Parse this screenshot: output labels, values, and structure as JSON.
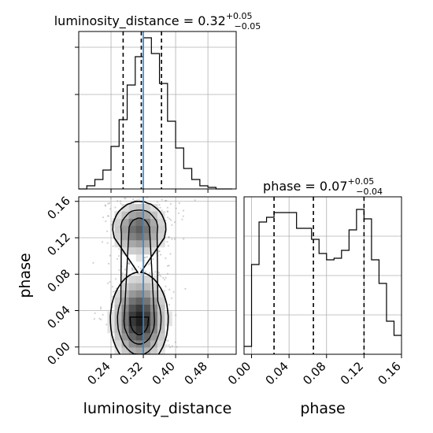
{
  "chart_data": [
    {
      "type": "histogram",
      "panel": "top-left",
      "parameter": "luminosity_distance",
      "title": {
        "prefix": "luminosity_distance = ",
        "value": "0.32",
        "plus": "+0.05",
        "minus": "−0.05"
      },
      "bin_edges": [
        0.16,
        0.18,
        0.2,
        0.22,
        0.24,
        0.26,
        0.28,
        0.3,
        0.32,
        0.34,
        0.36,
        0.38,
        0.4,
        0.42,
        0.44,
        0.46,
        0.48,
        0.5,
        0.52,
        0.54
      ],
      "counts": [
        0,
        0.02,
        0.06,
        0.12,
        0.27,
        0.44,
        0.66,
        0.84,
        0.96,
        0.86,
        0.67,
        0.43,
        0.26,
        0.13,
        0.06,
        0.02,
        0.01,
        0,
        0
      ],
      "quantiles": [
        0.27,
        0.315,
        0.365
      ],
      "truth": 0.32,
      "xlim": [
        0.16,
        0.55
      ],
      "ylim": [
        0,
        1.0
      ],
      "ytick_marks": [
        0.3,
        0.6,
        0.9
      ],
      "grid": true
    },
    {
      "type": "histogram2d_contour",
      "panel": "bottom-left",
      "x_parameter": "luminosity_distance",
      "y_parameter": "phase",
      "xlabel": "luminosity_distance",
      "ylabel": "phase",
      "xlim": [
        0.16,
        0.55
      ],
      "ylim": [
        -0.008,
        0.165
      ],
      "xticks": [
        "0.24",
        "0.32",
        "0.40",
        "0.48"
      ],
      "yticks": [
        "0.00",
        "0.04",
        "0.08",
        "0.12",
        "0.16"
      ],
      "truth_x": 0.32,
      "density_modes": [
        {
          "x": 0.31,
          "y": 0.03,
          "sx": 0.035,
          "sy": 0.025,
          "weight": 1.0
        },
        {
          "x": 0.31,
          "y": 0.13,
          "sx": 0.035,
          "sy": 0.016,
          "weight": 0.72
        }
      ],
      "grid": true
    },
    {
      "type": "histogram",
      "panel": "bottom-right",
      "parameter": "phase",
      "title": {
        "prefix": "phase = ",
        "value": "0.07",
        "plus": "+0.05",
        "minus": "−0.04"
      },
      "xlabel": "phase",
      "bin_edges": [
        -0.008,
        0.0,
        0.008,
        0.016,
        0.024,
        0.032,
        0.04,
        0.048,
        0.056,
        0.064,
        0.072,
        0.08,
        0.088,
        0.096,
        0.104,
        0.112,
        0.12,
        0.128,
        0.136,
        0.144,
        0.152,
        0.16
      ],
      "counts": [
        0.05,
        0.57,
        0.84,
        0.87,
        0.9,
        0.9,
        0.9,
        0.8,
        0.8,
        0.73,
        0.64,
        0.6,
        0.61,
        0.66,
        0.79,
        0.92,
        0.86,
        0.6,
        0.45,
        0.21,
        0.12
      ],
      "quantiles": [
        0.024,
        0.066,
        0.12
      ],
      "xlim": [
        -0.008,
        0.16
      ],
      "ylim": [
        0,
        1.0
      ],
      "xticks": [
        "0.00",
        "0.04",
        "0.08",
        "0.12",
        "0.16"
      ],
      "grid": true
    }
  ],
  "colors": {
    "line": "#000000",
    "truth": "#4682b4",
    "grid": "#b0b0b0",
    "scatter": "#9a9a9a"
  }
}
